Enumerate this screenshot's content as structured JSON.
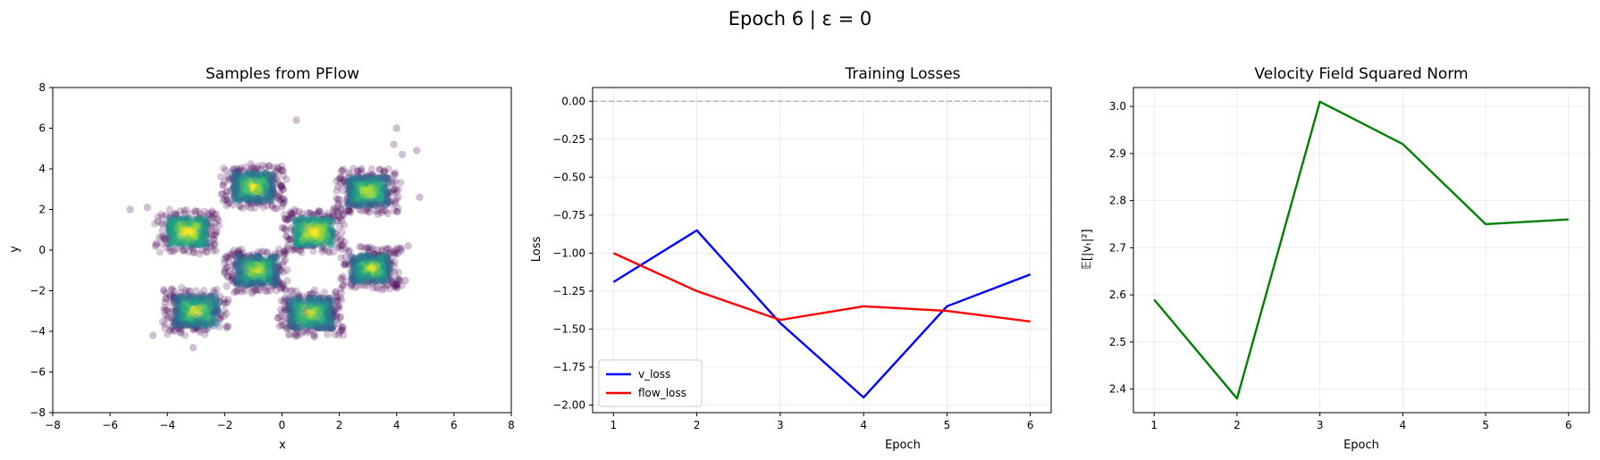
{
  "suptitle": "Epoch 6 | ε = 0",
  "chart_data": [
    {
      "type": "scatter",
      "title": "Samples from PFlow",
      "xlabel": "x",
      "ylabel": "y",
      "xlim": [
        -8,
        8
      ],
      "ylim": [
        -8,
        8
      ],
      "xticks": [
        "−8",
        "−6",
        "−4",
        "−2",
        "0",
        "2",
        "4",
        "6",
        "8"
      ],
      "yticks": [
        "−8",
        "−6",
        "−4",
        "−2",
        "0",
        "2",
        "4",
        "6",
        "8"
      ],
      "grid": false,
      "colormap": "viridis",
      "point_color_low": "#440154",
      "point_color_high": "#fde725",
      "clusters": [
        {
          "center": [
            -3.3,
            0.9
          ],
          "size": 1.4
        },
        {
          "center": [
            -1.0,
            3.1
          ],
          "size": 1.5
        },
        {
          "center": [
            3.0,
            2.9
          ],
          "size": 1.5
        },
        {
          "center": [
            1.1,
            0.9
          ],
          "size": 1.4
        },
        {
          "center": [
            -0.9,
            -1.0
          ],
          "size": 1.5
        },
        {
          "center": [
            3.1,
            -0.9
          ],
          "size": 1.4
        },
        {
          "center": [
            -3.0,
            -3.0
          ],
          "size": 1.6
        },
        {
          "center": [
            1.0,
            -3.1
          ],
          "size": 1.6
        }
      ],
      "outliers": [
        [
          0.5,
          6.4
        ],
        [
          4.0,
          6.0
        ],
        [
          3.9,
          5.2
        ],
        [
          4.2,
          4.7
        ],
        [
          4.7,
          4.9
        ],
        [
          -5.3,
          2.0
        ],
        [
          -4.7,
          2.1
        ],
        [
          4.8,
          2.6
        ],
        [
          4.4,
          0.2
        ],
        [
          -4.5,
          -4.2
        ],
        [
          -3.1,
          -4.8
        ],
        [
          4.3,
          -1.5
        ]
      ]
    },
    {
      "type": "line",
      "title": "Training Losses",
      "xlabel": "Epoch",
      "ylabel": "Loss",
      "x": [
        1,
        2,
        3,
        4,
        5,
        6
      ],
      "xlim": [
        0.75,
        6.25
      ],
      "ylim": [
        -2.05,
        0.09
      ],
      "yticks": [
        0.0,
        -0.25,
        -0.5,
        -0.75,
        -1.0,
        -1.25,
        -1.5,
        -1.75,
        -2.0
      ],
      "ytick_labels": [
        "0.00",
        "−0.25",
        "−0.50",
        "−0.75",
        "−1.00",
        "−1.25",
        "−1.50",
        "−1.75",
        "−2.00"
      ],
      "grid": true,
      "reference_line": 0,
      "legend_position": "lower-left",
      "series": [
        {
          "name": "v_loss",
          "color": "#0000ff",
          "values": [
            -1.19,
            -0.85,
            -1.46,
            -1.95,
            -1.35,
            -1.14
          ]
        },
        {
          "name": "flow_loss",
          "color": "#ff0000",
          "values": [
            -1.0,
            -1.25,
            -1.44,
            -1.35,
            -1.38,
            -1.45
          ]
        }
      ]
    },
    {
      "type": "line",
      "title": "Velocity Field Squared Norm",
      "xlabel": "Epoch",
      "ylabel": "𝔼[|vₜ|²]",
      "x": [
        1,
        2,
        3,
        4,
        5,
        6
      ],
      "xlim": [
        0.75,
        6.25
      ],
      "ylim": [
        2.35,
        3.04
      ],
      "yticks": [
        2.4,
        2.5,
        2.6,
        2.7,
        2.8,
        2.9,
        3.0
      ],
      "ytick_labels": [
        "2.4",
        "2.5",
        "2.6",
        "2.7",
        "2.8",
        "2.9",
        "3.0"
      ],
      "grid": true,
      "series": [
        {
          "color": "#008000",
          "values": [
            2.59,
            2.38,
            3.01,
            2.92,
            2.75,
            2.76
          ]
        }
      ]
    }
  ]
}
